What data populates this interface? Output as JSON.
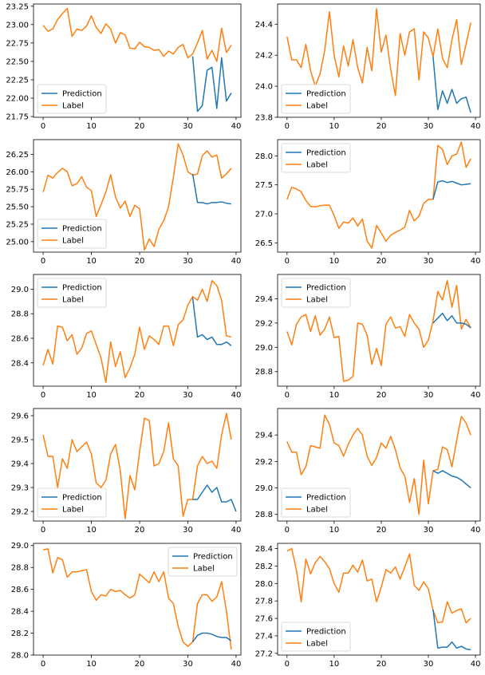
{
  "colors": {
    "prediction": "#1f77b4",
    "label": "#ff7f0e"
  },
  "chart_data": [
    {
      "type": "line",
      "xlim": [
        -2,
        41
      ],
      "ylim": [
        21.74,
        23.28
      ],
      "yticks": [
        "21.75",
        "22.00",
        "22.25",
        "22.50",
        "22.75",
        "23.00",
        "23.25"
      ],
      "xticks": [
        "0",
        "10",
        "20",
        "30",
        "40"
      ],
      "legend": "lower-left",
      "series": [
        {
          "name": "Prediction",
          "x_start": 31,
          "values": [
            22.57,
            21.82,
            21.9,
            22.38,
            22.42,
            21.86,
            22.55,
            21.96,
            22.07
          ]
        },
        {
          "name": "Label",
          "values": [
            22.99,
            22.91,
            22.94,
            23.07,
            23.15,
            23.22,
            22.84,
            22.94,
            22.92,
            22.98,
            23.12,
            22.96,
            22.88,
            23.01,
            22.94,
            22.75,
            22.89,
            22.86,
            22.68,
            22.67,
            22.76,
            22.7,
            22.69,
            22.65,
            22.66,
            22.57,
            22.64,
            22.6,
            22.69,
            22.73,
            22.55,
            22.6,
            22.75,
            22.92,
            22.53,
            22.65,
            22.5,
            22.95,
            22.62,
            22.72
          ]
        }
      ]
    },
    {
      "type": "line",
      "xlim": [
        -2,
        41
      ],
      "ylim": [
        23.8,
        24.53
      ],
      "yticks": [
        "23.8",
        "24.0",
        "24.2",
        "24.4"
      ],
      "xticks": [
        "0",
        "10",
        "20",
        "30",
        "40"
      ],
      "legend": "lower-left",
      "series": [
        {
          "name": "Prediction",
          "x_start": 31,
          "values": [
            24.19,
            23.85,
            23.97,
            23.89,
            23.98,
            23.89,
            23.92,
            23.93,
            23.83
          ]
        },
        {
          "name": "Label",
          "values": [
            24.32,
            24.17,
            24.17,
            24.12,
            24.27,
            24.1,
            24.0,
            24.08,
            24.23,
            24.48,
            24.2,
            24.06,
            24.26,
            24.13,
            24.3,
            24.12,
            24.02,
            24.25,
            24.1,
            24.5,
            24.22,
            24.33,
            24.11,
            23.94,
            24.34,
            24.2,
            24.35,
            24.37,
            24.04,
            24.35,
            24.31,
            24.19,
            24.37,
            24.18,
            24.12,
            24.3,
            24.43,
            24.14,
            24.27,
            24.41
          ]
        }
      ]
    },
    {
      "type": "line",
      "xlim": [
        -2,
        41
      ],
      "ylim": [
        24.85,
        26.46
      ],
      "yticks": [
        "25.00",
        "25.25",
        "25.50",
        "25.75",
        "26.00",
        "26.25"
      ],
      "xticks": [
        "0",
        "10",
        "20",
        "30",
        "40"
      ],
      "legend": "lower-left",
      "series": [
        {
          "name": "Prediction",
          "x_start": 31,
          "values": [
            25.97,
            25.56,
            25.56,
            25.54,
            25.56,
            25.56,
            25.57,
            25.55,
            25.54
          ]
        },
        {
          "name": "Label",
          "values": [
            25.71,
            25.95,
            25.91,
            25.99,
            26.05,
            26.0,
            25.8,
            25.83,
            25.93,
            25.78,
            25.73,
            25.36,
            25.53,
            25.71,
            25.96,
            25.64,
            25.48,
            25.58,
            25.36,
            25.52,
            25.47,
            24.88,
            25.04,
            24.93,
            25.18,
            25.3,
            25.5,
            25.92,
            26.4,
            26.24,
            26.0,
            25.95,
            25.97,
            26.23,
            26.3,
            26.21,
            26.24,
            25.91,
            25.97,
            26.05
          ]
        }
      ]
    },
    {
      "type": "line",
      "xlim": [
        -2,
        41
      ],
      "ylim": [
        26.34,
        28.28
      ],
      "yticks": [
        "26.5",
        "27.0",
        "27.5",
        "28.0"
      ],
      "xticks": [
        "0",
        "10",
        "20",
        "30",
        "40"
      ],
      "legend": "upper-left",
      "series": [
        {
          "name": "Prediction",
          "x_start": 31,
          "values": [
            27.25,
            27.55,
            27.57,
            27.54,
            27.56,
            27.53,
            27.5,
            27.51,
            27.52
          ]
        },
        {
          "name": "Label",
          "values": [
            27.25,
            27.46,
            27.43,
            27.38,
            27.23,
            27.13,
            27.12,
            27.14,
            27.15,
            27.15,
            26.97,
            26.75,
            26.86,
            26.84,
            26.93,
            26.79,
            26.91,
            26.53,
            26.41,
            26.8,
            26.67,
            26.53,
            26.63,
            26.68,
            26.72,
            26.77,
            27.06,
            26.88,
            26.96,
            27.18,
            27.25,
            27.25,
            28.18,
            28.11,
            27.85,
            28.0,
            28.03,
            28.24,
            27.8,
            27.95
          ]
        }
      ]
    },
    {
      "type": "line",
      "xlim": [
        -2,
        41
      ],
      "ylim": [
        28.21,
        29.12
      ],
      "yticks": [
        "28.4",
        "28.6",
        "28.8",
        "29.0"
      ],
      "xticks": [
        "0",
        "10",
        "20",
        "30",
        "40"
      ],
      "legend": "upper-left",
      "series": [
        {
          "name": "Prediction",
          "x_start": 31,
          "values": [
            28.93,
            28.61,
            28.63,
            28.59,
            28.61,
            28.55,
            28.55,
            28.57,
            28.54
          ]
        },
        {
          "name": "Label",
          "values": [
            28.38,
            28.51,
            28.39,
            28.7,
            28.69,
            28.58,
            28.63,
            28.47,
            28.52,
            28.64,
            28.66,
            28.55,
            28.44,
            28.24,
            28.57,
            28.37,
            28.49,
            28.28,
            28.36,
            28.47,
            28.69,
            28.51,
            28.62,
            28.59,
            28.55,
            28.7,
            28.7,
            28.54,
            28.71,
            28.75,
            28.87,
            28.94,
            28.91,
            29.0,
            28.9,
            29.07,
            29.03,
            28.91,
            28.62,
            28.61
          ]
        }
      ]
    },
    {
      "type": "line",
      "xlim": [
        -2,
        41
      ],
      "ylim": [
        28.68,
        29.6
      ],
      "yticks": [
        "28.8",
        "29.0",
        "29.2",
        "29.4"
      ],
      "xticks": [
        "0",
        "10",
        "20",
        "30",
        "40"
      ],
      "legend": "upper-left",
      "series": [
        {
          "name": "Prediction",
          "x_start": 31,
          "values": [
            29.2,
            29.24,
            29.28,
            29.22,
            29.26,
            29.2,
            29.2,
            29.19,
            29.16
          ]
        },
        {
          "name": "Label",
          "values": [
            29.13,
            29.02,
            29.19,
            29.25,
            29.27,
            29.13,
            29.26,
            29.1,
            29.15,
            29.25,
            29.08,
            29.09,
            28.72,
            28.73,
            28.76,
            29.2,
            29.19,
            29.1,
            28.86,
            28.99,
            28.85,
            29.19,
            29.25,
            29.16,
            29.17,
            29.09,
            29.27,
            29.2,
            29.15,
            29.0,
            29.06,
            29.22,
            29.46,
            29.39,
            29.55,
            29.33,
            29.51,
            29.15,
            29.23,
            29.16
          ]
        }
      ]
    },
    {
      "type": "line",
      "xlim": [
        -2,
        41
      ],
      "ylim": [
        29.16,
        29.63
      ],
      "yticks": [
        "29.2",
        "29.3",
        "29.4",
        "29.5",
        "29.6"
      ],
      "xticks": [
        "0",
        "10",
        "20",
        "30",
        "40"
      ],
      "legend": "lower-left",
      "series": [
        {
          "name": "Prediction",
          "x_start": 31,
          "values": [
            29.25,
            29.25,
            29.28,
            29.31,
            29.28,
            29.3,
            29.24,
            29.24,
            29.25,
            29.2
          ]
        },
        {
          "name": "Label",
          "values": [
            29.52,
            29.43,
            29.43,
            29.3,
            29.42,
            29.38,
            29.5,
            29.45,
            29.47,
            29.49,
            29.44,
            29.32,
            29.3,
            29.33,
            29.44,
            29.48,
            29.37,
            29.17,
            29.35,
            29.29,
            29.45,
            29.59,
            29.58,
            29.39,
            29.4,
            29.45,
            29.57,
            29.42,
            29.39,
            29.18,
            29.25,
            29.25,
            29.39,
            29.43,
            29.4,
            29.41,
            29.38,
            29.52,
            29.61,
            29.5
          ]
        }
      ]
    },
    {
      "type": "line",
      "xlim": [
        -2,
        41
      ],
      "ylim": [
        28.75,
        29.6
      ],
      "yticks": [
        "28.8",
        "29.0",
        "29.2",
        "29.4"
      ],
      "xticks": [
        "0",
        "10",
        "20",
        "30",
        "40"
      ],
      "legend": "lower-left",
      "series": [
        {
          "name": "Prediction",
          "x_start": 31,
          "values": [
            29.13,
            29.11,
            29.13,
            29.11,
            29.09,
            29.08,
            29.06,
            29.03,
            29.0
          ]
        },
        {
          "name": "Label",
          "values": [
            29.35,
            29.27,
            29.27,
            29.1,
            29.16,
            29.32,
            29.31,
            29.3,
            29.55,
            29.48,
            29.34,
            29.32,
            29.24,
            29.33,
            29.4,
            29.45,
            29.4,
            29.24,
            29.17,
            29.23,
            29.34,
            29.3,
            29.39,
            29.29,
            29.15,
            29.09,
            28.89,
            29.07,
            28.8,
            29.21,
            28.88,
            29.13,
            29.14,
            29.31,
            29.29,
            29.16,
            29.36,
            29.54,
            29.49,
            29.4
          ]
        }
      ]
    },
    {
      "type": "line",
      "xlim": [
        -2,
        41
      ],
      "ylim": [
        28.0,
        29.02
      ],
      "yticks": [
        "28.0",
        "28.2",
        "28.4",
        "28.6",
        "28.8",
        "29.0"
      ],
      "xticks": [
        "0",
        "10",
        "20",
        "30",
        "40"
      ],
      "legend": "upper-right",
      "series": [
        {
          "name": "Prediction",
          "x_start": 31,
          "values": [
            28.12,
            28.18,
            28.2,
            28.2,
            28.19,
            28.17,
            28.16,
            28.16,
            28.13
          ]
        },
        {
          "name": "Label",
          "values": [
            28.96,
            28.97,
            28.75,
            28.89,
            28.87,
            28.71,
            28.76,
            28.76,
            28.77,
            28.78,
            28.58,
            28.5,
            28.55,
            28.54,
            28.6,
            28.58,
            28.59,
            28.55,
            28.52,
            28.55,
            28.74,
            28.7,
            28.66,
            28.76,
            28.67,
            28.76,
            28.52,
            28.47,
            28.26,
            28.12,
            28.08,
            28.12,
            28.47,
            28.55,
            28.55,
            28.49,
            28.53,
            28.67,
            28.4,
            28.05
          ]
        }
      ]
    },
    {
      "type": "line",
      "xlim": [
        -2,
        41
      ],
      "ylim": [
        27.18,
        28.46
      ],
      "yticks": [
        "27.2",
        "27.4",
        "27.6",
        "27.8",
        "28.0",
        "28.2",
        "28.4"
      ],
      "xticks": [
        "0",
        "10",
        "20",
        "30",
        "40"
      ],
      "legend": "lower-left",
      "series": [
        {
          "name": "Prediction",
          "x_start": 31,
          "values": [
            27.7,
            27.26,
            27.27,
            27.27,
            27.33,
            27.26,
            27.28,
            27.25,
            27.24
          ]
        },
        {
          "name": "Label",
          "values": [
            28.37,
            28.4,
            28.15,
            27.79,
            28.28,
            28.11,
            28.24,
            28.31,
            28.25,
            28.17,
            28.0,
            27.9,
            28.12,
            28.12,
            28.21,
            28.13,
            28.27,
            28.03,
            28.05,
            27.79,
            27.96,
            28.16,
            28.12,
            28.19,
            28.05,
            28.19,
            28.34,
            27.98,
            27.92,
            28.02,
            27.94,
            27.69,
            27.55,
            27.56,
            27.79,
            27.66,
            27.69,
            27.71,
            27.55,
            27.6
          ]
        }
      ]
    }
  ]
}
